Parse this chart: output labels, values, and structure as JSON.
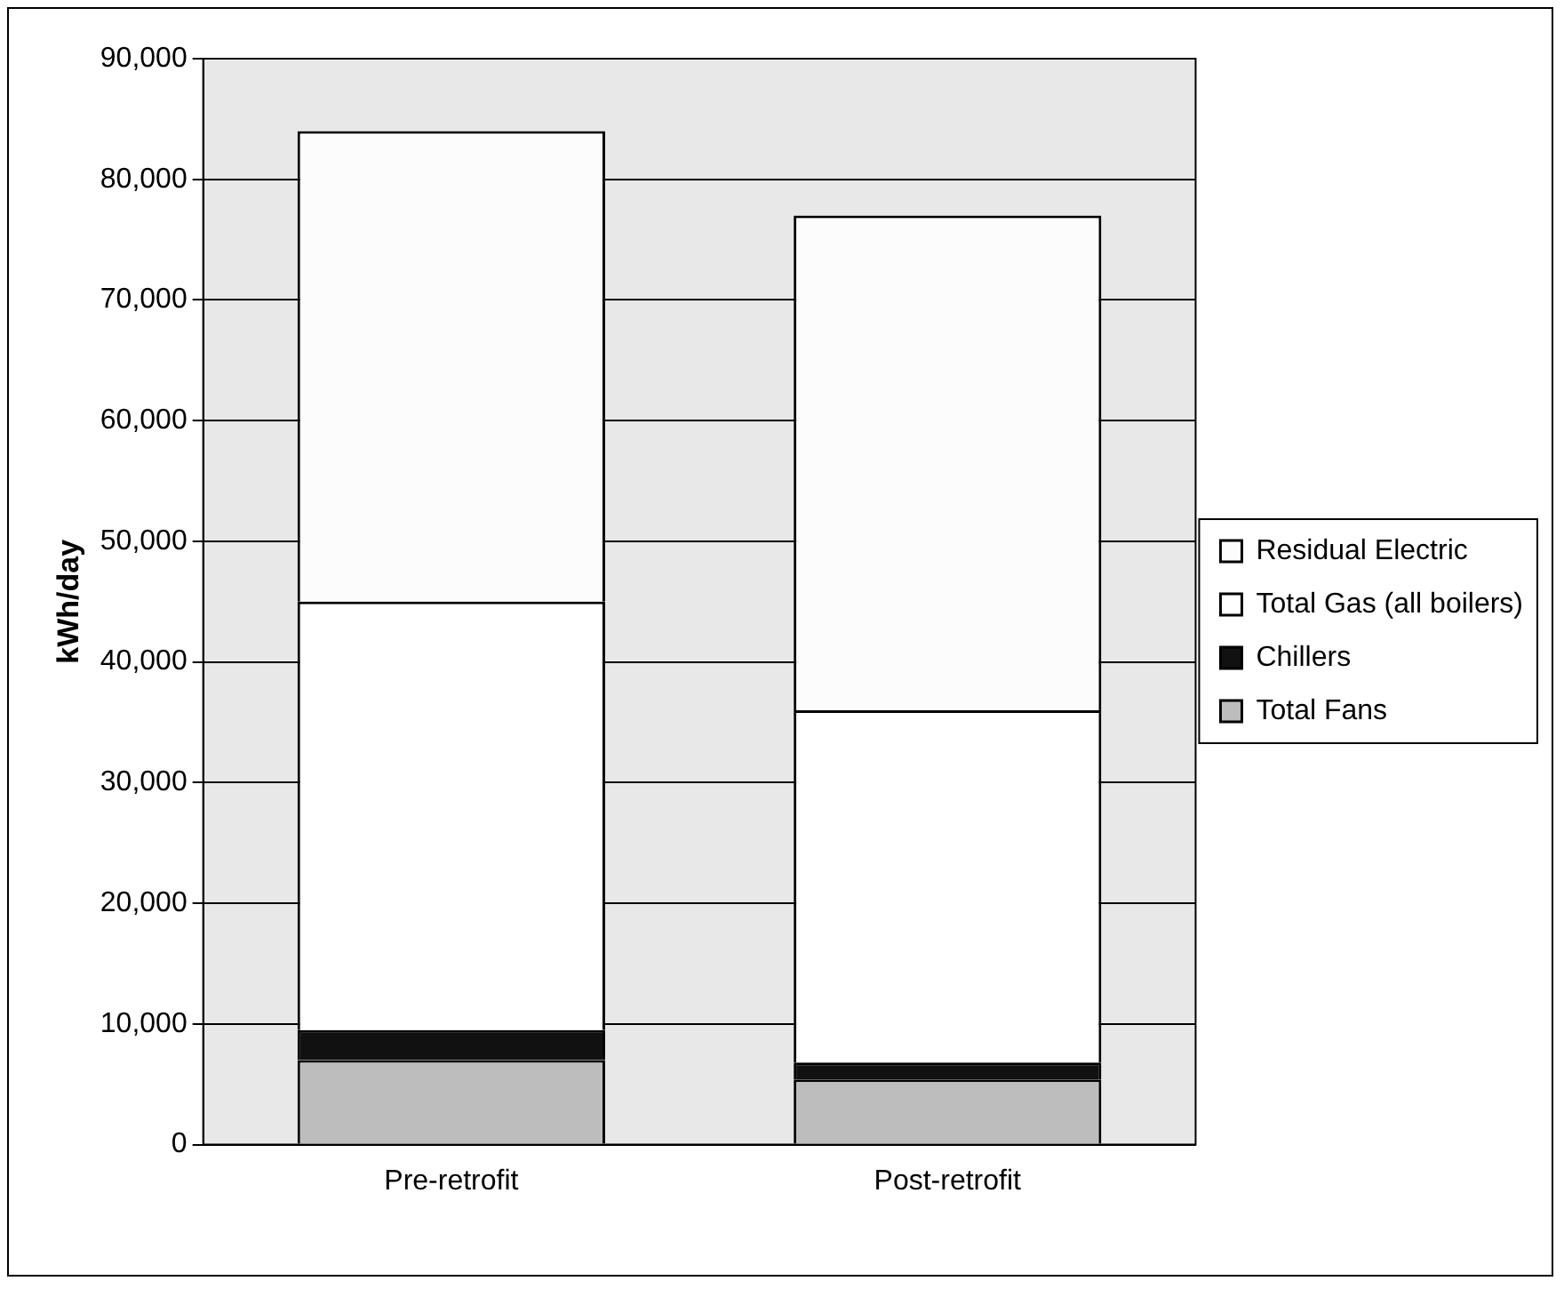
{
  "chart_data": {
    "type": "bar",
    "stacked": true,
    "ylabel": "kWh/day",
    "categories": [
      "Pre-retrofit",
      "Post-retrofit"
    ],
    "series": [
      {
        "name": "Total Fans",
        "color": "#bdbdbd",
        "values": [
          7000,
          5400
        ]
      },
      {
        "name": "Chillers",
        "color": "#111111",
        "values": [
          2500,
          1400
        ]
      },
      {
        "name": "Total Gas (all boilers)",
        "color": "#ffffff",
        "values": [
          35500,
          29200
        ]
      },
      {
        "name": "Residual Electric",
        "color": "#fcfcfc",
        "values": [
          39000,
          41000
        ]
      }
    ],
    "ylim": [
      0,
      90000
    ],
    "yticks": [
      {
        "value": 0,
        "label": "0"
      },
      {
        "value": 10000,
        "label": "10,000"
      },
      {
        "value": 20000,
        "label": "20,000"
      },
      {
        "value": 30000,
        "label": "30,000"
      },
      {
        "value": 40000,
        "label": "40,000"
      },
      {
        "value": 50000,
        "label": "50,000"
      },
      {
        "value": 60000,
        "label": "60,000"
      },
      {
        "value": 70000,
        "label": "70,000"
      },
      {
        "value": 80000,
        "label": "80,000"
      },
      {
        "value": 90000,
        "label": "90,000"
      }
    ],
    "grid": "y",
    "legend": "right"
  }
}
